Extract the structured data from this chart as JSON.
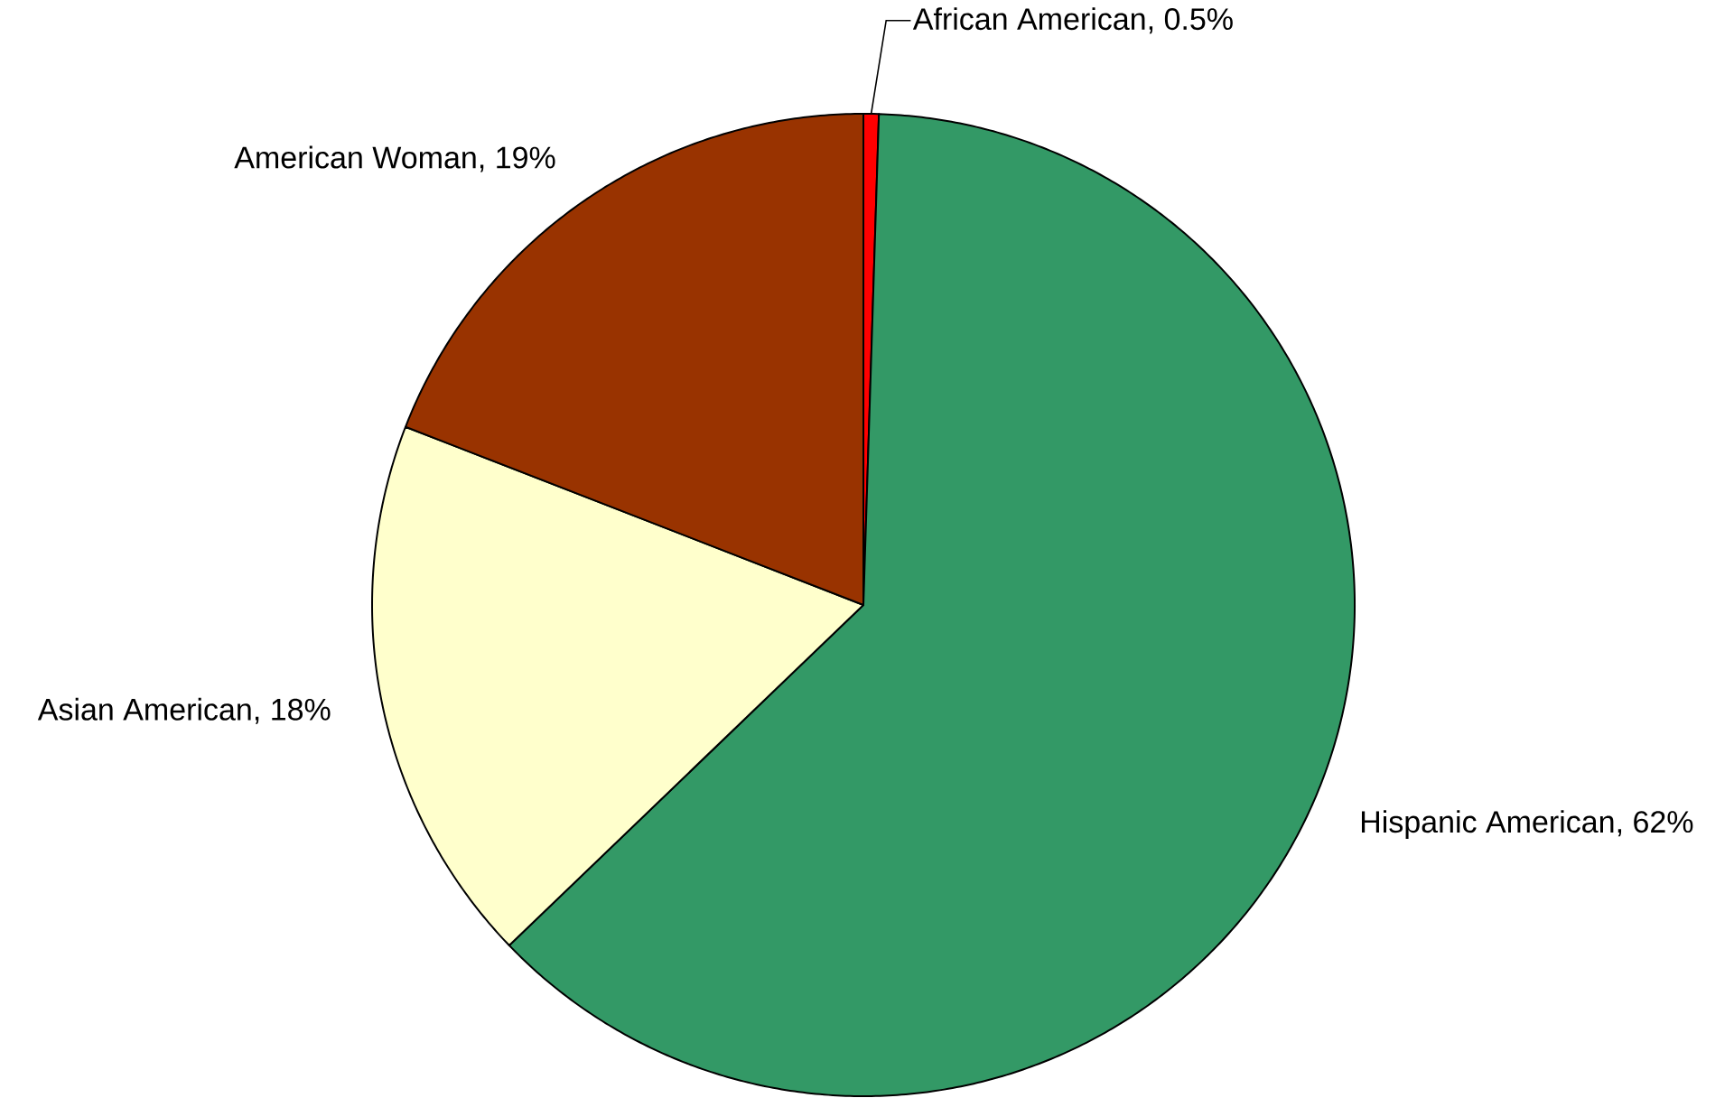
{
  "chart_data": {
    "type": "pie",
    "categories": [
      "African American",
      "Hispanic American",
      "Asian American",
      "American Woman"
    ],
    "values": [
      0.5,
      62,
      18,
      19
    ],
    "colors": [
      "#ff0000",
      "#339966",
      "#ffffcc",
      "#993300"
    ],
    "value_labels": [
      ", 0.5%",
      ", 62%",
      ", 18%",
      ", 19%"
    ]
  }
}
